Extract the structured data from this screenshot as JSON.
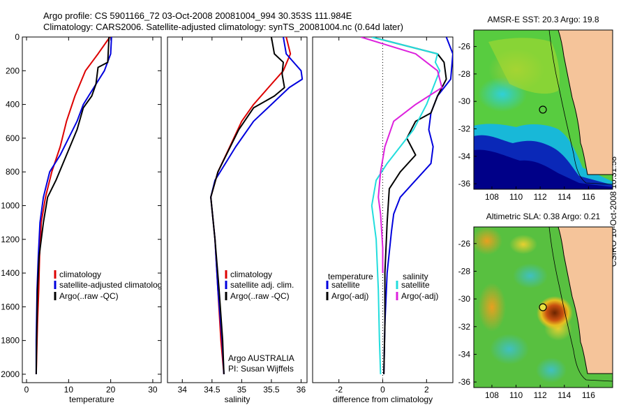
{
  "header": {
    "line1": "Argo profile: CS 5901166_72 03-Oct-2008 20081004_994 30.353S 111.984E",
    "line2": "Climatology: CARS2006. Satellite-adjusted climatology: synTS_20081004.nc (0.64d later)"
  },
  "credit": "CSIRO 10-Oct-2008 10:31:58",
  "colors": {
    "climatology": "#dd0000",
    "satellite": "#0000dd",
    "argo": "#000000",
    "sat_salinity": "#22dddd",
    "argo_salinity": "#dd22dd",
    "land": "#f5c49a",
    "ocean_deep": "#000080"
  },
  "chart_data": [
    {
      "type": "line",
      "panel": "temperature",
      "xlabel": "temperature",
      "ylabel": "",
      "xlim": [
        -1,
        32
      ],
      "ylim": [
        2050,
        0
      ],
      "xticks": [
        0,
        10,
        20,
        30
      ],
      "yticks": [
        0,
        200,
        400,
        600,
        800,
        1000,
        1200,
        1400,
        1600,
        1800,
        2000
      ],
      "legend": [
        "climatology",
        "satellite-adjusted climatology",
        "Argo(..raw -QC)"
      ],
      "legend_placement": "bottom-right",
      "series": [
        {
          "name": "climatology",
          "color": "#dd0000",
          "x": [
            19.8,
            17,
            14,
            11.5,
            9.5,
            8,
            6,
            4.5,
            3.5,
            3.1,
            2.9,
            2.6,
            2.4,
            2.3
          ],
          "y": [
            0,
            100,
            200,
            350,
            500,
            650,
            800,
            950,
            1100,
            1300,
            1500,
            1700,
            1900,
            2000
          ]
        },
        {
          "name": "satellite-adjusted climatology",
          "color": "#0000dd",
          "x": [
            20.2,
            20,
            18.5,
            16,
            13.5,
            12,
            10,
            8,
            5.5,
            4,
            3.2,
            2.8,
            2.5,
            2.3,
            2.3
          ],
          "y": [
            0,
            100,
            200,
            300,
            400,
            500,
            600,
            700,
            800,
            950,
            1100,
            1300,
            1500,
            1800,
            2000
          ]
        },
        {
          "name": "Argo(..raw -QC)",
          "color": "#000000",
          "x": [
            19.6,
            19.3,
            17,
            16.5,
            15.5,
            13.5,
            12,
            9.5,
            7,
            5,
            4,
            3,
            2.6,
            2.4,
            2.3
          ],
          "y": [
            0,
            150,
            180,
            280,
            350,
            420,
            550,
            700,
            850,
            950,
            1100,
            1300,
            1500,
            1800,
            2000
          ]
        }
      ]
    },
    {
      "type": "line",
      "panel": "salinity",
      "xlabel": "salinity",
      "ylabel": "",
      "xlim": [
        33.75,
        36.1
      ],
      "ylim": [
        2050,
        0
      ],
      "xticks": [
        34,
        34.5,
        35,
        35.5,
        36
      ],
      "yticks": [],
      "legend": [
        "climatology",
        "satellite adj. clim.",
        "Argo(..raw -QC)"
      ],
      "legend_placement": "bottom-right",
      "annotations": [
        "Argo AUSTRALIA",
        "PI: Susan Wijffels"
      ],
      "series": [
        {
          "name": "climatology",
          "color": "#dd0000",
          "x": [
            35.75,
            35.82,
            35.7,
            35.45,
            35.2,
            35,
            34.8,
            34.6,
            34.48,
            34.55,
            34.6,
            34.65,
            34.7
          ],
          "y": [
            0,
            100,
            200,
            300,
            400,
            500,
            650,
            800,
            950,
            1200,
            1500,
            1800,
            2000
          ]
        },
        {
          "name": "satellite adj. clim.",
          "color": "#0000dd",
          "x": [
            35.7,
            35.75,
            36.0,
            36.02,
            35.8,
            35.5,
            35.2,
            34.9,
            34.55,
            34.48,
            34.55,
            34.6,
            34.67,
            34.7
          ],
          "y": [
            0,
            100,
            200,
            250,
            300,
            400,
            500,
            650,
            850,
            950,
            1200,
            1500,
            1800,
            2000
          ]
        },
        {
          "name": "Argo(..raw -QC)",
          "color": "#000000",
          "x": [
            35.5,
            35.55,
            35.7,
            35.68,
            35.72,
            35.55,
            35.2,
            34.95,
            34.6,
            34.48,
            34.55,
            34.62,
            34.68,
            34.7
          ],
          "y": [
            0,
            100,
            150,
            220,
            300,
            350,
            420,
            550,
            800,
            950,
            1200,
            1500,
            1800,
            2000
          ]
        }
      ]
    },
    {
      "type": "line",
      "panel": "difference",
      "xlabel": "difference from climatology",
      "ylabel": "",
      "xlim": [
        -3.2,
        3.2
      ],
      "ylim": [
        2050,
        0
      ],
      "xticks": [
        -2,
        0,
        2
      ],
      "yticks": [],
      "reference_line": 0,
      "legend": [
        "temperature",
        "satellite",
        "Argo(-adj)",
        "salinity",
        "satellite",
        "Argo(-adj)"
      ],
      "legend_placement": "bottom-center",
      "series": [
        {
          "name": "satellite",
          "group": "temperature",
          "color": "#0000dd",
          "x": [
            2.9,
            3.2,
            3.1,
            2.5,
            2.2,
            2.1,
            2.3,
            2.2,
            1.5,
            0.8,
            0.5,
            0.4,
            0.2,
            0.1,
            0.05
          ],
          "y": [
            0,
            100,
            250,
            350,
            450,
            550,
            650,
            750,
            850,
            950,
            1050,
            1150,
            1400,
            1700,
            2000
          ]
        },
        {
          "name": "Argo(-adj)",
          "group": "temperature",
          "color": "#000000",
          "x": [
            -0.5,
            2.5,
            2.8,
            2.9,
            2.5,
            2.2,
            1.5,
            1.1,
            1.5,
            0.8,
            0.3,
            0.2,
            0.1,
            0.1,
            0.05
          ],
          "y": [
            0,
            100,
            150,
            250,
            350,
            450,
            500,
            600,
            700,
            800,
            900,
            1100,
            1400,
            1700,
            2000
          ]
        },
        {
          "name": "satellite",
          "group": "salinity",
          "color": "#22dddd",
          "x": [
            -0.5,
            2.5,
            2.4,
            2.6,
            2.0,
            1.4,
            0.8,
            0.2,
            -0.3,
            -0.5,
            -0.3,
            -0.2,
            -0.15,
            -0.1
          ],
          "y": [
            0,
            100,
            150,
            200,
            400,
            550,
            650,
            750,
            850,
            1000,
            1200,
            1500,
            1800,
            2000
          ]
        },
        {
          "name": "Argo(-adj)",
          "group": "salinity",
          "color": "#dd22dd",
          "x": [
            -1.0,
            1.5,
            2.5,
            2.7,
            1.5,
            0.5,
            0.1,
            -0.1,
            -0.2,
            -0.1,
            0.0,
            0.0
          ],
          "y": [
            0,
            100,
            200,
            300,
            400,
            500,
            650,
            800,
            950,
            1050,
            1250,
            1400
          ]
        }
      ]
    },
    {
      "type": "heatmap",
      "panel": "map-sst",
      "title": "AMSR-E SST: 20.3  Argo: 19.8",
      "xlim": [
        106.5,
        118
      ],
      "ylim": [
        -36.4,
        -24.8
      ],
      "xticks": [
        108,
        110,
        112,
        114,
        116
      ],
      "yticks": [
        -26,
        -28,
        -30,
        -32,
        -34,
        -36
      ],
      "marker": {
        "lon": 111.984,
        "lat": -30.353
      }
    },
    {
      "type": "heatmap",
      "panel": "map-sla",
      "title": "Altimetric SLA: 0.38  Argo: 0.21",
      "xlim": [
        106.5,
        118
      ],
      "ylim": [
        -36.4,
        -24.8
      ],
      "xticks": [
        108,
        110,
        112,
        114,
        116
      ],
      "yticks": [
        -26,
        -28,
        -30,
        -32,
        -34,
        -36
      ],
      "marker": {
        "lon": 111.984,
        "lat": -30.353
      }
    }
  ]
}
